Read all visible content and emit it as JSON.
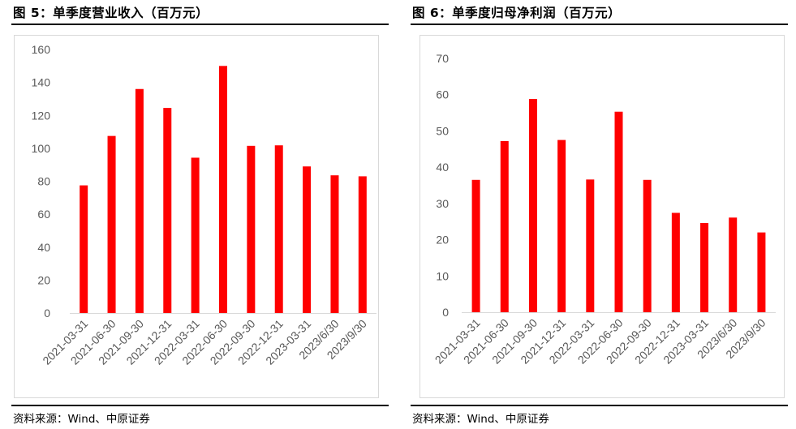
{
  "figures": [
    {
      "title": "图 5：单季度营业收入（百万元）",
      "source": "资料来源：Wind、中原证券",
      "chart_data": {
        "type": "bar",
        "categories": [
          "2021-03-31",
          "2021-06-30",
          "2021-09-30",
          "2021-12-31",
          "2022-03-31",
          "2022-06-30",
          "2022-09-30",
          "2022-12-31",
          "2023-03-31",
          "2023/6/30",
          "2023/9/30"
        ],
        "values": [
          77.5,
          107.5,
          136,
          124.5,
          94.3,
          150,
          101.5,
          101.8,
          89,
          83.6,
          83
        ],
        "ylim": [
          0,
          160
        ],
        "yticks": [
          0,
          20,
          40,
          60,
          80,
          100,
          120,
          140,
          160
        ],
        "title": "",
        "xlabel": "",
        "ylabel": "",
        "grid": false,
        "bar_color": "#ff0000"
      }
    },
    {
      "title": "图 6：单季度归母净利润（百万元）",
      "source": "资料来源：Wind、中原证券",
      "chart_data": {
        "type": "bar",
        "categories": [
          "2021-03-31",
          "2021-06-30",
          "2021-09-30",
          "2021-12-31",
          "2022-03-31",
          "2022-06-30",
          "2022-09-30",
          "2022-12-31",
          "2023-03-31",
          "2023/6/30",
          "2023/9/30"
        ],
        "values": [
          36.5,
          47.2,
          58.8,
          47.5,
          36.6,
          55.3,
          36.5,
          27.4,
          24.6,
          26.1,
          22
        ],
        "ylim": [
          0,
          70
        ],
        "yticks": [
          0,
          10,
          20,
          30,
          40,
          50,
          60,
          70
        ],
        "title": "",
        "xlabel": "",
        "ylabel": "",
        "grid": false,
        "bar_color": "#ff0000"
      }
    }
  ]
}
